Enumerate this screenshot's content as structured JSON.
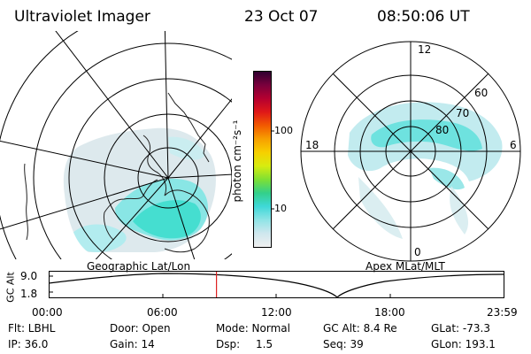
{
  "header": {
    "title": "Ultraviolet Imager",
    "date": "23 Oct 07",
    "time": "08:50:06 UT"
  },
  "left_panel": {
    "label": "Geographic Lat/Lon"
  },
  "right_panel": {
    "label": "Apex MLat/MLT",
    "mlt_labels": {
      "top": "12",
      "left": "18",
      "right": "6",
      "bottom": "0"
    },
    "mlat_labels": [
      "60",
      "70",
      "80"
    ]
  },
  "colorbar": {
    "unit_label": "photon cm⁻²s⁻¹",
    "ticks": [
      "100",
      "10"
    ],
    "scale": "log",
    "colors": [
      "#f0f0f0",
      "#cfe7ee",
      "#8fe4e6",
      "#3fd8d8",
      "#33d08a",
      "#7ee034",
      "#d7ec10",
      "#f7d000",
      "#f7a000",
      "#f25a00",
      "#e01818",
      "#b50030",
      "#7a003c",
      "#300030"
    ]
  },
  "gc_alt_plot": {
    "ylabel": "GC Alt",
    "yticks": [
      "9.0",
      "1.8"
    ],
    "xticks": [
      "00:00",
      "06:00",
      "12:00",
      "18:00",
      "23:59"
    ],
    "marker_time_hours": 8.83,
    "marker_color": "#dd2222"
  },
  "info": {
    "flt": "Flt: LBHL",
    "ip": "IP: 36.0",
    "door": "Door: Open",
    "gain": "Gain: 14",
    "mode": "Mode: Normal",
    "dsp_label": "Dsp:",
    "dsp_value": "1.5",
    "gc_alt": "GC Alt: 8.4 Re",
    "seq": "Seq: 39",
    "glat": "GLat: -73.3",
    "glon": "GLon: 193.1"
  }
}
